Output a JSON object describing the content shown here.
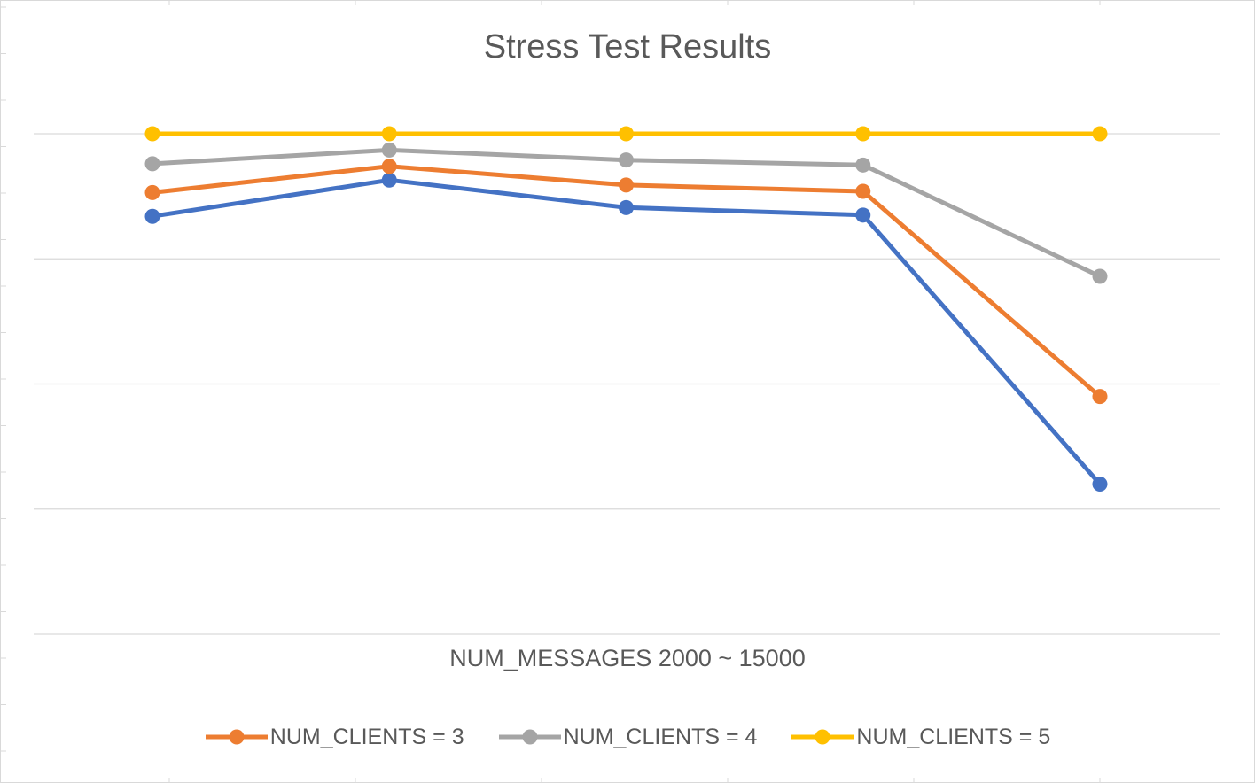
{
  "chart_data": {
    "type": "line",
    "title": "Stress Test Results",
    "xlabel": "NUM_MESSAGES 2000 ~ 15000",
    "ylabel": "",
    "x": [
      1,
      2,
      3,
      4,
      5
    ],
    "ylim": [
      0,
      4
    ],
    "grid": true,
    "legend_position": "bottom",
    "series": [
      {
        "name": "",
        "color": "#4472C4",
        "values": [
          3.34,
          3.63,
          3.41,
          3.35,
          1.2
        ]
      },
      {
        "name": "NUM_CLIENTS = 3",
        "color": "#ED7D31",
        "values": [
          3.53,
          3.74,
          3.59,
          3.54,
          1.9
        ]
      },
      {
        "name": "NUM_CLIENTS = 4",
        "color": "#A5A5A5",
        "values": [
          3.76,
          3.87,
          3.79,
          3.75,
          2.86
        ]
      },
      {
        "name": "NUM_CLIENTS = 5",
        "color": "#FFC000",
        "values": [
          4.0,
          4.0,
          4.0,
          4.0,
          4.0
        ]
      }
    ]
  }
}
